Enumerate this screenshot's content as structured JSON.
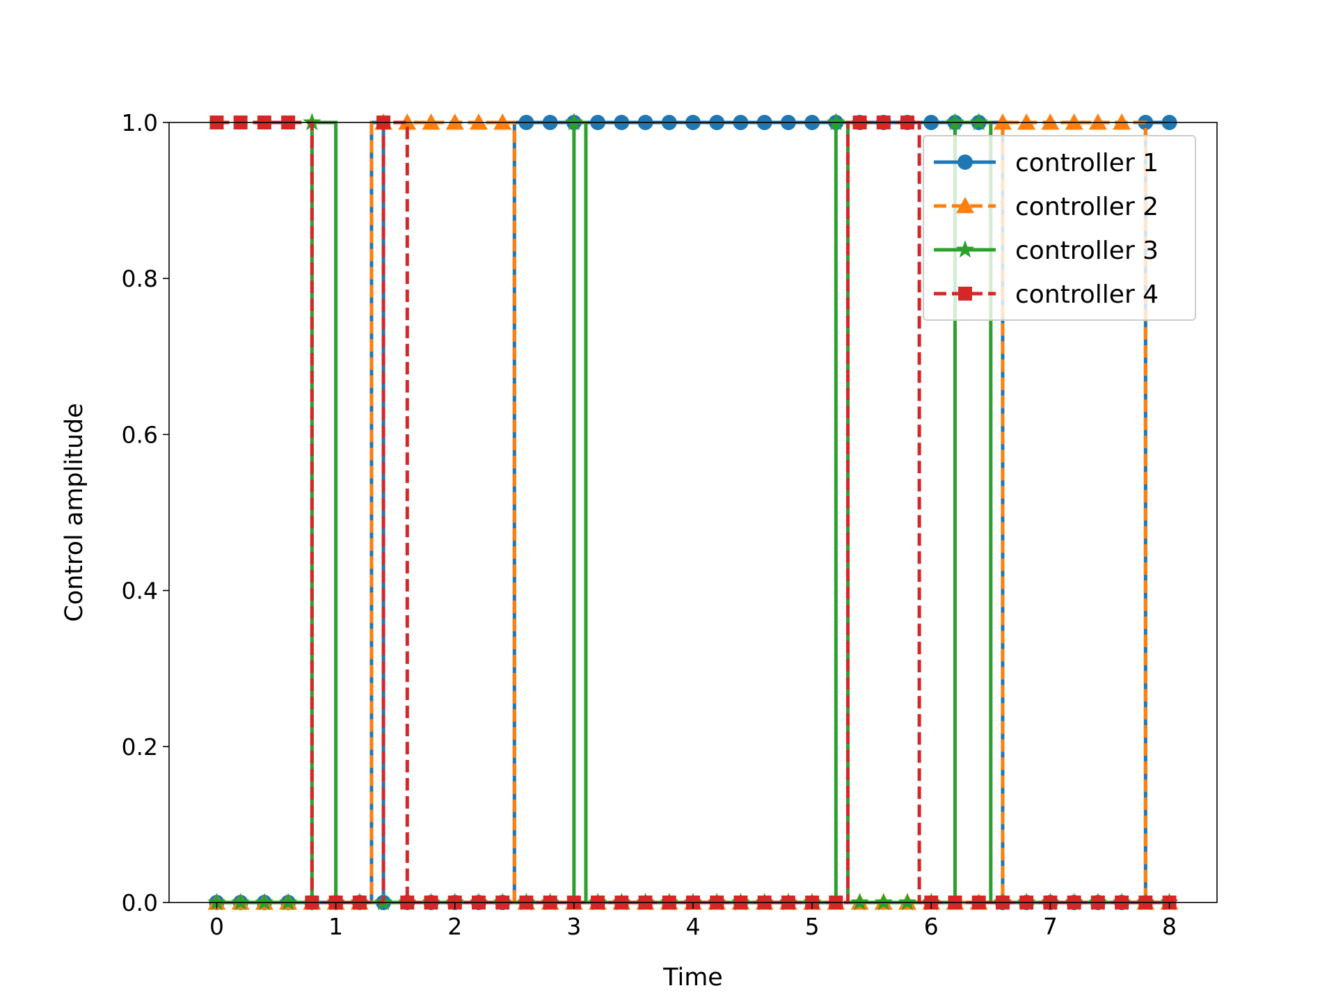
{
  "chart_data": {
    "type": "line",
    "title": "",
    "xlabel": "Time",
    "ylabel": "Control amplitude",
    "xlim": [
      -0.4,
      8.4
    ],
    "ylim": [
      0,
      1
    ],
    "xticks": [
      "0",
      "1",
      "2",
      "3",
      "4",
      "5",
      "6",
      "7",
      "8"
    ],
    "yticks": [
      "0.0",
      "0.2",
      "0.4",
      "0.6",
      "0.8",
      "1.0"
    ],
    "grid": false,
    "legend_position": "upper right",
    "step": "post",
    "x": [
      0,
      0.1,
      0.2,
      0.3,
      0.4,
      0.5,
      0.6,
      0.7,
      0.8,
      0.9,
      1.0,
      1.1,
      1.2,
      1.3,
      1.4,
      1.5,
      1.6,
      1.7,
      1.8,
      1.9,
      2.0,
      2.1,
      2.2,
      2.3,
      2.4,
      2.5,
      2.6,
      2.7,
      2.8,
      2.9,
      3.0,
      3.1,
      3.2,
      3.3,
      3.4,
      3.5,
      3.6,
      3.7,
      3.8,
      3.9,
      4.0,
      4.1,
      4.2,
      4.3,
      4.4,
      4.5,
      4.6,
      4.7,
      4.8,
      4.9,
      5.0,
      5.1,
      5.2,
      5.3,
      5.4,
      5.5,
      5.6,
      5.7,
      5.8,
      5.9,
      6.0,
      6.1,
      6.2,
      6.3,
      6.4,
      6.5,
      6.6,
      6.7,
      6.8,
      6.9,
      7.0,
      7.1,
      7.2,
      7.3,
      7.4,
      7.5,
      7.6,
      7.7,
      7.8,
      7.9,
      8.0
    ],
    "series": [
      {
        "name": "controller 1",
        "color": "#1f77b4",
        "marker": "circle",
        "linestyle": "solid",
        "values": [
          0,
          0,
          0,
          0,
          0,
          0,
          0,
          0,
          0,
          0,
          0,
          0,
          0,
          1,
          0,
          0,
          0,
          0,
          0,
          0,
          0,
          0,
          0,
          0,
          0,
          1,
          1,
          1,
          1,
          1,
          1,
          1,
          1,
          1,
          1,
          1,
          1,
          1,
          1,
          1,
          1,
          1,
          1,
          1,
          1,
          1,
          1,
          1,
          1,
          1,
          1,
          1,
          1,
          1,
          1,
          1,
          1,
          1,
          1,
          1,
          1,
          1,
          1,
          1,
          1,
          1,
          0,
          0,
          0,
          0,
          0,
          0,
          0,
          0,
          0,
          0,
          0,
          0,
          1,
          1,
          1
        ]
      },
      {
        "name": "controller 2",
        "color": "#ff7f0e",
        "marker": "triangle",
        "linestyle": "dashed",
        "values": [
          0,
          0,
          0,
          0,
          0,
          0,
          0,
          0,
          0,
          0,
          0,
          0,
          0,
          1,
          1,
          1,
          1,
          1,
          1,
          1,
          1,
          1,
          1,
          1,
          1,
          0,
          0,
          0,
          0,
          0,
          0,
          0,
          0,
          0,
          0,
          0,
          0,
          0,
          0,
          0,
          0,
          0,
          0,
          0,
          0,
          0,
          0,
          0,
          0,
          0,
          0,
          0,
          0,
          0,
          0,
          0,
          0,
          0,
          0,
          0,
          0,
          0,
          0,
          0,
          0,
          0,
          1,
          1,
          1,
          1,
          1,
          1,
          1,
          1,
          1,
          1,
          1,
          1,
          0,
          0,
          0
        ]
      },
      {
        "name": "controller 3",
        "color": "#2ca02c",
        "marker": "star",
        "linestyle": "solid",
        "values": [
          0,
          0,
          0,
          0,
          0,
          0,
          0,
          0,
          1,
          1,
          0,
          0,
          0,
          0,
          0,
          0,
          0,
          0,
          0,
          0,
          0,
          0,
          0,
          0,
          0,
          0,
          0,
          0,
          0,
          0,
          1,
          0,
          0,
          0,
          0,
          0,
          0,
          0,
          0,
          0,
          0,
          0,
          0,
          0,
          0,
          0,
          0,
          0,
          0,
          0,
          0,
          0,
          1,
          0,
          0,
          0,
          0,
          0,
          0,
          0,
          0,
          0,
          1,
          1,
          1,
          0,
          0,
          0,
          0,
          0,
          0,
          0,
          0,
          0,
          0,
          0,
          0,
          0,
          0,
          0,
          0
        ]
      },
      {
        "name": "controller 4",
        "color": "#d62728",
        "marker": "square",
        "linestyle": "dashed",
        "values": [
          1,
          1,
          1,
          1,
          1,
          1,
          1,
          1,
          0,
          0,
          0,
          0,
          0,
          0,
          1,
          1,
          0,
          0,
          0,
          0,
          0,
          0,
          0,
          0,
          0,
          0,
          0,
          0,
          0,
          0,
          0,
          0,
          0,
          0,
          0,
          0,
          0,
          0,
          0,
          0,
          0,
          0,
          0,
          0,
          0,
          0,
          0,
          0,
          0,
          0,
          0,
          0,
          0,
          1,
          1,
          1,
          1,
          1,
          1,
          0,
          0,
          0,
          0,
          0,
          0,
          0,
          0,
          0,
          0,
          0,
          0,
          0,
          0,
          0,
          0,
          0,
          0,
          0,
          0,
          0,
          0
        ]
      }
    ]
  }
}
